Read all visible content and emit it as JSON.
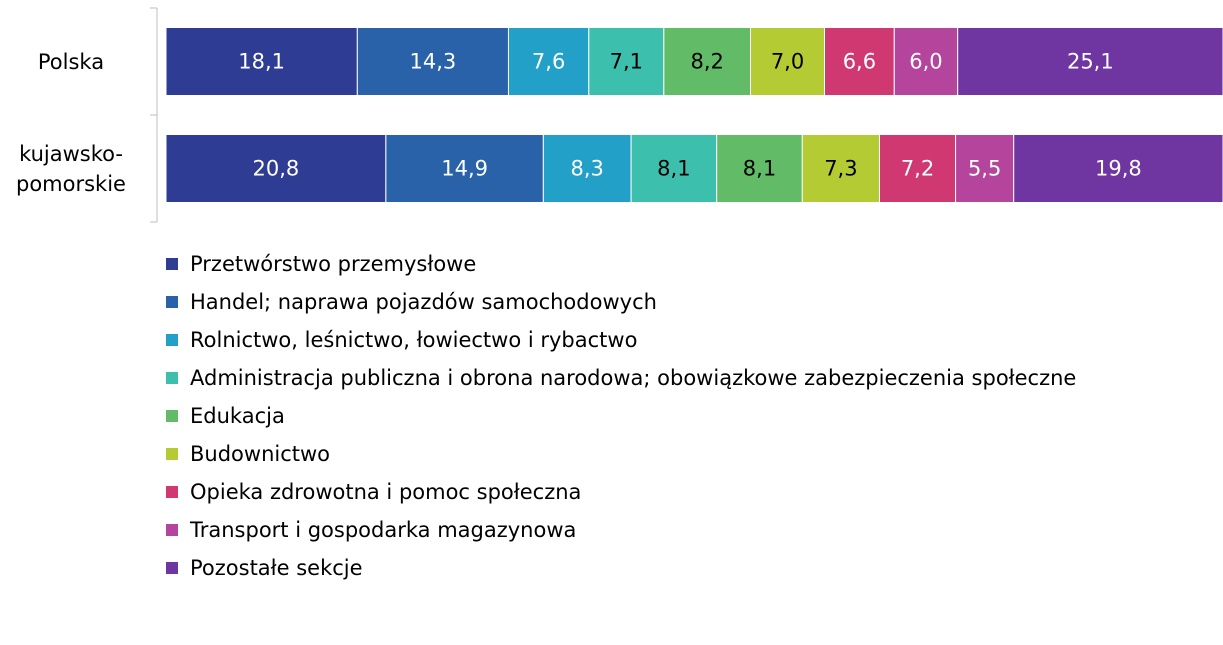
{
  "chart_data": {
    "type": "stacked-barh",
    "categories": [
      "Polska",
      "kujawsko-pomorskie"
    ],
    "xlim": [
      0,
      100
    ],
    "legend": "bottom",
    "series": [
      {
        "name": "Przetwórstwo przemysłowe",
        "color": "#2e3c94",
        "values": [
          18.1,
          20.8
        ],
        "value_labels": [
          "18,1",
          "20,8"
        ]
      },
      {
        "name": "Handel; naprawa pojazdów samochodowych",
        "color": "#2962a8",
        "values": [
          14.3,
          14.9
        ],
        "value_labels": [
          "14,3",
          "14,9"
        ]
      },
      {
        "name": "Rolnictwo, leśnictwo, łowiectwo i rybactwo",
        "color": "#22a0c8",
        "values": [
          7.6,
          8.3
        ],
        "value_labels": [
          "7,6",
          "8,3"
        ]
      },
      {
        "name": "Administracja publiczna i obrona narodowa; obowiązkowe zabezpieczenia społeczne",
        "color": "#3dbfae",
        "values": [
          7.1,
          8.1
        ],
        "value_labels": [
          "7,1",
          "8,1"
        ]
      },
      {
        "name": "Edukacja",
        "color": "#62bb66",
        "values": [
          8.2,
          8.1
        ],
        "value_labels": [
          "8,2",
          "8,1"
        ]
      },
      {
        "name": "Budownictwo",
        "color": "#b5cb33",
        "values": [
          7.0,
          7.3
        ],
        "value_labels": [
          "7,0",
          "7,3"
        ]
      },
      {
        "name": "Opieka zdrowotna i pomoc społeczna",
        "color": "#d03871",
        "values": [
          6.6,
          7.2
        ],
        "value_labels": [
          "6,6",
          "7,2"
        ]
      },
      {
        "name": "Transport i gospodarka magazynowa",
        "color": "#b4449c",
        "values": [
          6.0,
          5.5
        ],
        "value_labels": [
          "6,0",
          "5,5"
        ]
      },
      {
        "name": "Pozostałe sekcje",
        "color": "#6f35a0",
        "values": [
          25.1,
          19.8
        ],
        "value_labels": [
          "25,1",
          "19,8"
        ]
      }
    ]
  }
}
